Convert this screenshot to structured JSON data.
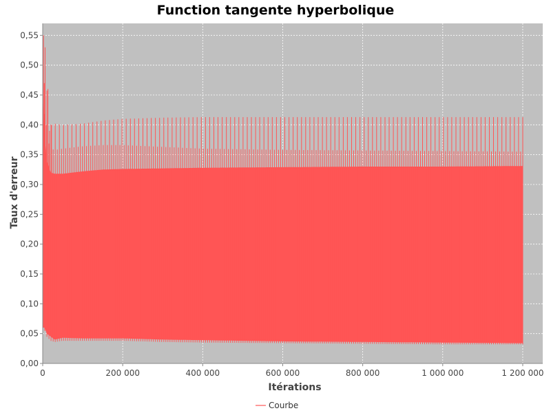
{
  "chart_data": {
    "type": "line",
    "title": "Function tangente hyperbolique",
    "xlabel": "Itérations",
    "ylabel": "Taux d'erreur",
    "xlim": [
      0,
      1250000
    ],
    "ylim": [
      0,
      0.57
    ],
    "x_ticks": [
      {
        "value": 0,
        "label": "0"
      },
      {
        "value": 200000,
        "label": "200 000"
      },
      {
        "value": 400000,
        "label": "400 000"
      },
      {
        "value": 600000,
        "label": "600 000"
      },
      {
        "value": 800000,
        "label": "800 000"
      },
      {
        "value": 1000000,
        "label": "1 000 000"
      },
      {
        "value": 1200000,
        "label": "1 200 000"
      }
    ],
    "y_ticks": [
      {
        "value": 0.0,
        "label": "0,00"
      },
      {
        "value": 0.05,
        "label": "0,05"
      },
      {
        "value": 0.1,
        "label": "0,10"
      },
      {
        "value": 0.15,
        "label": "0,15"
      },
      {
        "value": 0.2,
        "label": "0,20"
      },
      {
        "value": 0.25,
        "label": "0,25"
      },
      {
        "value": 0.3,
        "label": "0,30"
      },
      {
        "value": 0.35,
        "label": "0,35"
      },
      {
        "value": 0.4,
        "label": "0,40"
      },
      {
        "value": 0.45,
        "label": "0,45"
      },
      {
        "value": 0.5,
        "label": "0,50"
      },
      {
        "value": 0.55,
        "label": "0,55"
      }
    ],
    "grid": true,
    "legend_position": "bottom-center",
    "series": [
      {
        "name": "Courbe",
        "color": "#FF5555",
        "envelope": {
          "x": [
            0,
            5000,
            10000,
            20000,
            30000,
            50000,
            100000,
            150000,
            200000,
            300000,
            400000,
            600000,
            800000,
            1000000,
            1200000
          ],
          "upper_peak": [
            0.55,
            0.53,
            0.46,
            0.4,
            0.402,
            0.4,
            0.402,
            0.407,
            0.41,
            0.412,
            0.413,
            0.413,
            0.413,
            0.413,
            0.413
          ],
          "upper_band": [
            0.5,
            0.42,
            0.38,
            0.36,
            0.358,
            0.36,
            0.364,
            0.366,
            0.366,
            0.363,
            0.36,
            0.358,
            0.357,
            0.356,
            0.355
          ],
          "mid_band": [
            0.45,
            0.38,
            0.34,
            0.32,
            0.318,
            0.318,
            0.322,
            0.325,
            0.326,
            0.327,
            0.328,
            0.329,
            0.33,
            0.33,
            0.331
          ],
          "lower": [
            0.06,
            0.06,
            0.05,
            0.045,
            0.04,
            0.043,
            0.042,
            0.042,
            0.042,
            0.04,
            0.039,
            0.037,
            0.036,
            0.035,
            0.034
          ],
          "lower_spike": [
            0.06,
            0.055,
            0.045,
            0.038,
            0.036,
            0.038,
            0.038,
            0.038,
            0.038,
            0.036,
            0.035,
            0.034,
            0.033,
            0.032,
            0.032
          ]
        },
        "x_end": 1200000,
        "end_value": 0.04
      }
    ]
  }
}
